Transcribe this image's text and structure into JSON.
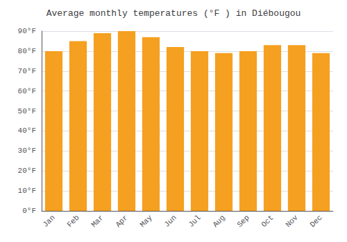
{
  "chart_data": {
    "type": "bar",
    "title": "Average monthly temperatures (°F ) in Diébougou",
    "categories": [
      "Jan",
      "Feb",
      "Mar",
      "Apr",
      "May",
      "Jun",
      "Jul",
      "Aug",
      "Sep",
      "Oct",
      "Nov",
      "Dec"
    ],
    "values": [
      80,
      85,
      89,
      90,
      87,
      82,
      80,
      79,
      80,
      83,
      83,
      79
    ],
    "color": "#F5A020",
    "ylim": [
      0,
      90
    ],
    "yticks": [
      {
        "value": 0,
        "label": "0°F"
      },
      {
        "value": 10,
        "label": "10°F"
      },
      {
        "value": 20,
        "label": "20°F"
      },
      {
        "value": 30,
        "label": "30°F"
      },
      {
        "value": 40,
        "label": "40°F"
      },
      {
        "value": 50,
        "label": "50°F"
      },
      {
        "value": 60,
        "label": "60°F"
      },
      {
        "value": 70,
        "label": "70°F"
      },
      {
        "value": 80,
        "label": "80°F"
      },
      {
        "value": 90,
        "label": "90°F"
      }
    ],
    "grid": true
  }
}
